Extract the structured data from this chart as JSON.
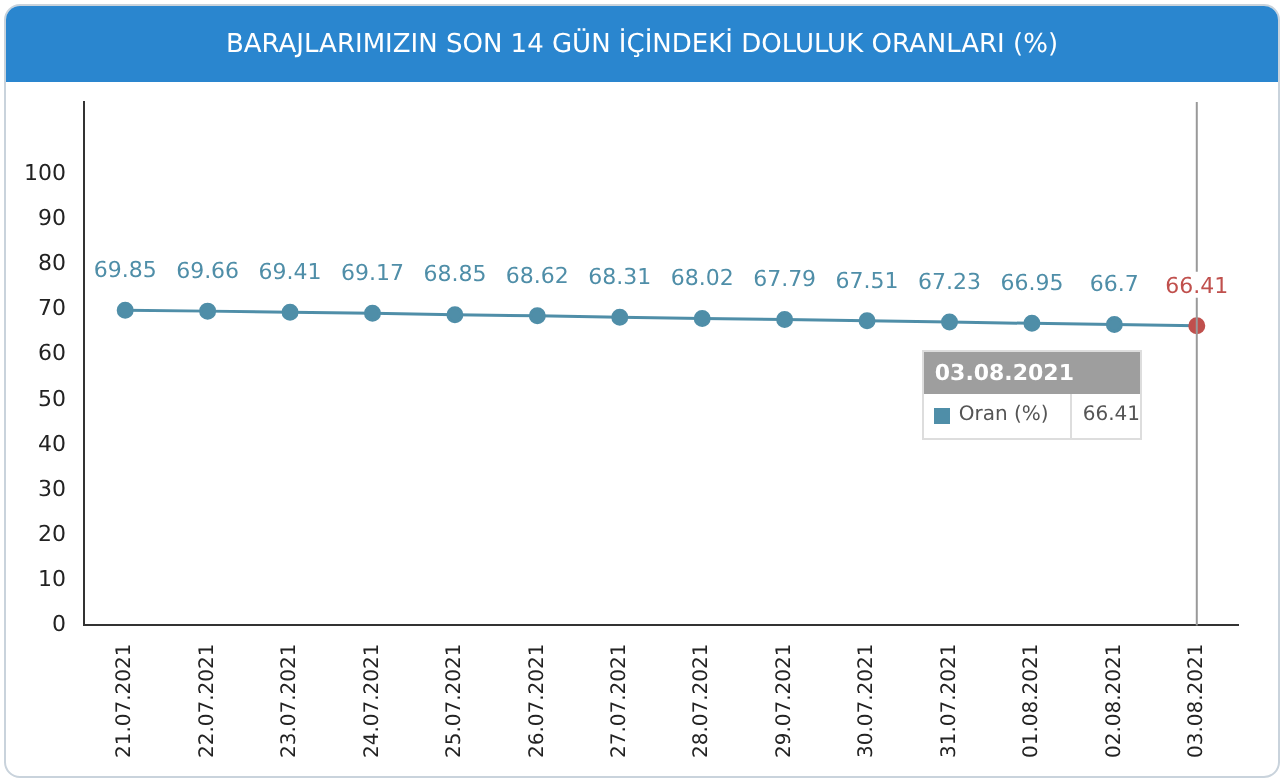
{
  "chart_data": {
    "type": "line",
    "title": "BARAJLARIMIZIN SON 14 GÜN İÇİNDEKİ DOLULUK ORANLARI (%)",
    "categories": [
      "21.07.2021",
      "22.07.2021",
      "23.07.2021",
      "24.07.2021",
      "25.07.2021",
      "26.07.2021",
      "27.07.2021",
      "28.07.2021",
      "29.07.2021",
      "30.07.2021",
      "31.07.2021",
      "01.08.2021",
      "02.08.2021",
      "03.08.2021"
    ],
    "series": [
      {
        "name": "Oran (%)",
        "color": "#4f8ea8",
        "colors": [
          "#4f8ea8",
          "#4f8ea8",
          "#4f8ea8",
          "#4f8ea8",
          "#4f8ea8",
          "#4f8ea8",
          "#4f8ea8",
          "#4f8ea8",
          "#4f8ea8",
          "#4f8ea8",
          "#4f8ea8",
          "#4f8ea8",
          "#4f8ea8",
          "#c0504d"
        ],
        "values": [
          69.85,
          69.66,
          69.41,
          69.17,
          68.85,
          68.62,
          68.31,
          68.02,
          67.79,
          67.51,
          67.23,
          66.95,
          66.7,
          66.41
        ]
      }
    ],
    "ylim": [
      0,
      116
    ],
    "yticks": [
      0,
      10,
      20,
      30,
      40,
      50,
      60,
      70,
      80,
      90,
      100
    ],
    "grid": false,
    "legend": "right",
    "marker": "circle",
    "line_style": "solid",
    "data_labels": true,
    "ref_lines": [
      {
        "axis": "x",
        "value": "03.08.2021",
        "color": "#999999"
      }
    ],
    "annotations": [
      "66.41"
    ]
  }
}
